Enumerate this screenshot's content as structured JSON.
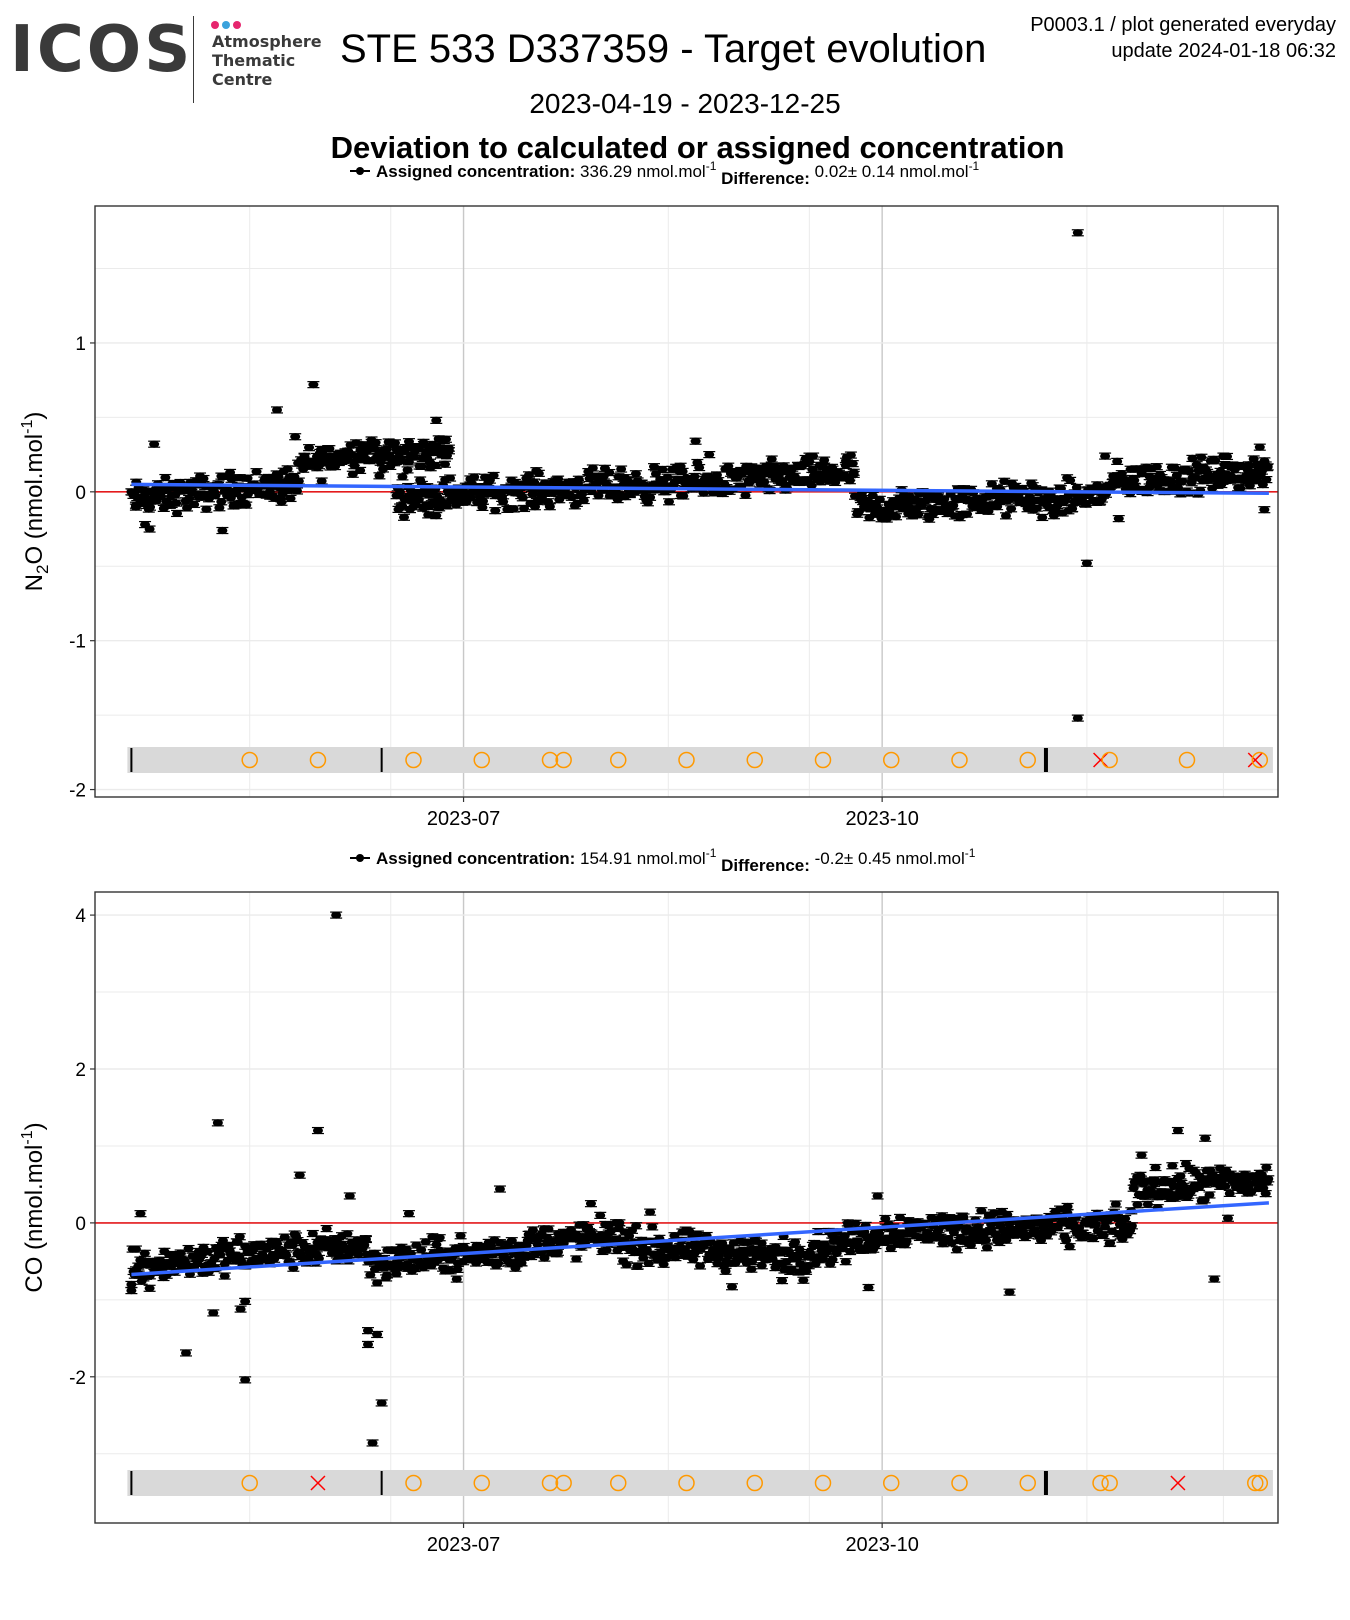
{
  "header": {
    "logo_text": "ICOS",
    "logo_subtitle_lines": [
      "Atmosphere",
      "Thematic",
      "Centre"
    ],
    "logo_dot_colors": [
      "#e6266e",
      "#3aa2dc",
      "#e6266e"
    ],
    "title": "STE 533 D337359 - Target evolution",
    "generated_note": "P0003.1 / plot generated everyday",
    "update_note": "update  2024-01-18 06:32",
    "date_range": "2023-04-19 - 2023-12-25",
    "section_title": "Deviation to calculated or assigned concentration"
  },
  "colors": {
    "points": "#000000",
    "trend_line": "#3366ff",
    "reference_line": "#e41a1c",
    "event_circle": "#ff9900",
    "event_cross": "#ff0000",
    "event_band": "#d9d9d9",
    "grid_major": "#c8c8c8",
    "grid_minor": "#ebebeb"
  },
  "chart_data": [
    {
      "type": "scatter",
      "gas": "N2O",
      "ylabel_prefix": "N",
      "ylabel_sub": "2",
      "ylabel_rest": "O (nmol.mol",
      "ylabel_sup": "-1",
      "ylabel_close": ")",
      "legend": {
        "assigned_label": "Assigned concentration:",
        "assigned_value": "336.29 nmol.mol",
        "assigned_sup": "-1",
        "difference_label": "Difference:",
        "difference_value": "0.02± 0.14 nmol.mol",
        "difference_sup": "-1"
      },
      "x_range": [
        "2023-04-11",
        "2023-12-27"
      ],
      "ylim": [
        -2.05,
        1.92
      ],
      "y_ticks": [
        1,
        0,
        -1,
        -2
      ],
      "y_tick_labels": [
        "1",
        "0",
        "-1",
        "-2"
      ],
      "x_ticks": [
        "2023-07-01",
        "2023-10-01"
      ],
      "x_tick_labels": [
        "2023-07",
        "2023-10"
      ],
      "reference_value": 0,
      "trend": [
        [
          "2023-04-19",
          0.05
        ],
        [
          "2023-12-25",
          -0.01
        ]
      ],
      "baseline_segments": [
        [
          "2023-04-19",
          "2023-05-26",
          -0.05,
          0.06
        ],
        [
          "2023-05-26",
          "2023-06-12",
          0.17,
          0.3
        ],
        [
          "2023-06-12",
          "2023-06-28",
          0.22,
          0.28
        ],
        [
          "2023-06-16",
          "2023-08-20",
          -0.03,
          0.06
        ],
        [
          "2023-08-20",
          "2023-09-25",
          0.05,
          0.14
        ],
        [
          "2023-09-25",
          "2023-11-05",
          -0.12,
          -0.03
        ],
        [
          "2023-11-05",
          "2023-11-20",
          -0.08,
          0.0
        ],
        [
          "2023-11-20",
          "2023-12-25",
          0.06,
          0.14
        ]
      ],
      "points": [
        [
          "2023-04-19",
          0.0
        ],
        [
          "2023-04-20",
          -0.09
        ],
        [
          "2023-04-22",
          -0.22
        ],
        [
          "2023-04-23",
          -0.25
        ],
        [
          "2023-04-24",
          0.32
        ],
        [
          "2023-05-09",
          -0.26
        ],
        [
          "2023-05-21",
          0.55
        ],
        [
          "2023-05-22",
          -0.07
        ],
        [
          "2023-05-25",
          0.37
        ],
        [
          "2023-05-29",
          0.72
        ],
        [
          "2023-06-25",
          0.48
        ],
        [
          "2023-06-26",
          0.28
        ],
        [
          "2023-06-25",
          -0.16
        ],
        [
          "2023-08-21",
          0.34
        ],
        [
          "2023-08-24",
          0.25
        ],
        [
          "2023-11-13",
          1.74
        ],
        [
          "2023-11-13",
          -1.52
        ],
        [
          "2023-11-15",
          -0.48
        ],
        [
          "2023-11-19",
          0.24
        ],
        [
          "2023-11-22",
          -0.18
        ],
        [
          "2023-12-15",
          0.24
        ],
        [
          "2023-12-23",
          0.3
        ],
        [
          "2023-12-24",
          -0.12
        ]
      ],
      "events": [
        [
          "2023-04-19",
          "bar"
        ],
        [
          "2023-05-15",
          "circle"
        ],
        [
          "2023-05-30",
          "circle"
        ],
        [
          "2023-06-13",
          "bar"
        ],
        [
          "2023-06-20",
          "circle"
        ],
        [
          "2023-07-05",
          "circle"
        ],
        [
          "2023-07-20",
          "circle"
        ],
        [
          "2023-07-23",
          "circle"
        ],
        [
          "2023-08-04",
          "circle"
        ],
        [
          "2023-08-19",
          "circle"
        ],
        [
          "2023-09-03",
          "circle"
        ],
        [
          "2023-09-18",
          "circle"
        ],
        [
          "2023-10-03",
          "circle"
        ],
        [
          "2023-10-18",
          "circle"
        ],
        [
          "2023-11-02",
          "circle"
        ],
        [
          "2023-11-06",
          "thickbar"
        ],
        [
          "2023-11-18",
          "cross"
        ],
        [
          "2023-11-20",
          "circle"
        ],
        [
          "2023-12-07",
          "circle"
        ],
        [
          "2023-12-22",
          "cross"
        ],
        [
          "2023-12-23",
          "circle"
        ]
      ]
    },
    {
      "type": "scatter",
      "gas": "CO",
      "ylabel_prefix": "CO (nmol.mol",
      "ylabel_sub": "",
      "ylabel_rest": "",
      "ylabel_sup": "-1",
      "ylabel_close": ")",
      "legend": {
        "assigned_label": "Assigned concentration:",
        "assigned_value": "154.91 nmol.mol",
        "assigned_sup": "-1",
        "difference_label": "Difference:",
        "difference_value": "-0.2± 0.45 nmol.mol",
        "difference_sup": "-1"
      },
      "x_range": [
        "2023-04-11",
        "2023-12-27"
      ],
      "ylim": [
        -3.9,
        4.3
      ],
      "y_ticks": [
        4,
        2,
        0,
        -2
      ],
      "y_tick_labels": [
        "4",
        "2",
        "0",
        "-2"
      ],
      "x_ticks": [
        "2023-07-01",
        "2023-10-01"
      ],
      "x_tick_labels": [
        "2023-07",
        "2023-10"
      ],
      "reference_value": 0,
      "trend": [
        [
          "2023-04-19",
          -0.67
        ],
        [
          "2023-12-25",
          0.26
        ]
      ],
      "baseline_segments": [
        [
          "2023-04-19",
          "2023-06-10",
          -0.55,
          -0.28
        ],
        [
          "2023-06-10",
          "2023-07-15",
          -0.52,
          -0.36
        ],
        [
          "2023-07-15",
          "2023-08-05",
          -0.28,
          -0.15
        ],
        [
          "2023-08-05",
          "2023-09-15",
          -0.3,
          -0.45
        ],
        [
          "2023-09-15",
          "2023-10-01",
          -0.35,
          -0.15
        ],
        [
          "2023-10-01",
          "2023-11-25",
          -0.1,
          -0.05
        ],
        [
          "2023-11-25",
          "2023-12-25",
          0.45,
          0.55
        ]
      ],
      "points": [
        [
          "2023-04-19",
          -0.8
        ],
        [
          "2023-04-19",
          -0.88
        ],
        [
          "2023-04-20",
          -0.34
        ],
        [
          "2023-04-21",
          0.12
        ],
        [
          "2023-04-23",
          -0.85
        ],
        [
          "2023-05-01",
          -1.69
        ],
        [
          "2023-05-08",
          1.3
        ],
        [
          "2023-05-07",
          -1.17
        ],
        [
          "2023-05-13",
          -1.12
        ],
        [
          "2023-05-14",
          -2.04
        ],
        [
          "2023-05-14",
          -1.02
        ],
        [
          "2023-05-26",
          0.62
        ],
        [
          "2023-05-30",
          1.2
        ],
        [
          "2023-06-03",
          4.0
        ],
        [
          "2023-06-06",
          0.35
        ],
        [
          "2023-06-10",
          -1.4
        ],
        [
          "2023-06-10",
          -1.58
        ],
        [
          "2023-06-12",
          -1.45
        ],
        [
          "2023-06-13",
          -2.34
        ],
        [
          "2023-06-11",
          -2.86
        ],
        [
          "2023-06-19",
          0.12
        ],
        [
          "2023-07-09",
          0.44
        ],
        [
          "2023-07-29",
          0.25
        ],
        [
          "2023-08-11",
          0.14
        ],
        [
          "2023-08-29",
          -0.83
        ],
        [
          "2023-09-09",
          -0.75
        ],
        [
          "2023-09-30",
          0.35
        ],
        [
          "2023-09-28",
          -0.84
        ],
        [
          "2023-10-29",
          -0.9
        ],
        [
          "2023-12-13",
          -0.73
        ],
        [
          "2023-12-05",
          1.2
        ],
        [
          "2023-12-11",
          1.1
        ],
        [
          "2023-11-27",
          0.88
        ],
        [
          "2023-12-16",
          0.06
        ]
      ],
      "events": [
        [
          "2023-04-19",
          "bar"
        ],
        [
          "2023-05-15",
          "circle"
        ],
        [
          "2023-05-30",
          "cross"
        ],
        [
          "2023-06-13",
          "bar"
        ],
        [
          "2023-06-20",
          "circle"
        ],
        [
          "2023-07-05",
          "circle"
        ],
        [
          "2023-07-20",
          "circle"
        ],
        [
          "2023-07-23",
          "circle"
        ],
        [
          "2023-08-04",
          "circle"
        ],
        [
          "2023-08-19",
          "circle"
        ],
        [
          "2023-09-03",
          "circle"
        ],
        [
          "2023-09-18",
          "circle"
        ],
        [
          "2023-10-03",
          "circle"
        ],
        [
          "2023-10-18",
          "circle"
        ],
        [
          "2023-11-02",
          "circle"
        ],
        [
          "2023-11-06",
          "thickbar"
        ],
        [
          "2023-11-18",
          "circle"
        ],
        [
          "2023-11-20",
          "circle"
        ],
        [
          "2023-12-05",
          "cross"
        ],
        [
          "2023-12-22",
          "circle"
        ],
        [
          "2023-12-23",
          "circle"
        ]
      ]
    }
  ]
}
